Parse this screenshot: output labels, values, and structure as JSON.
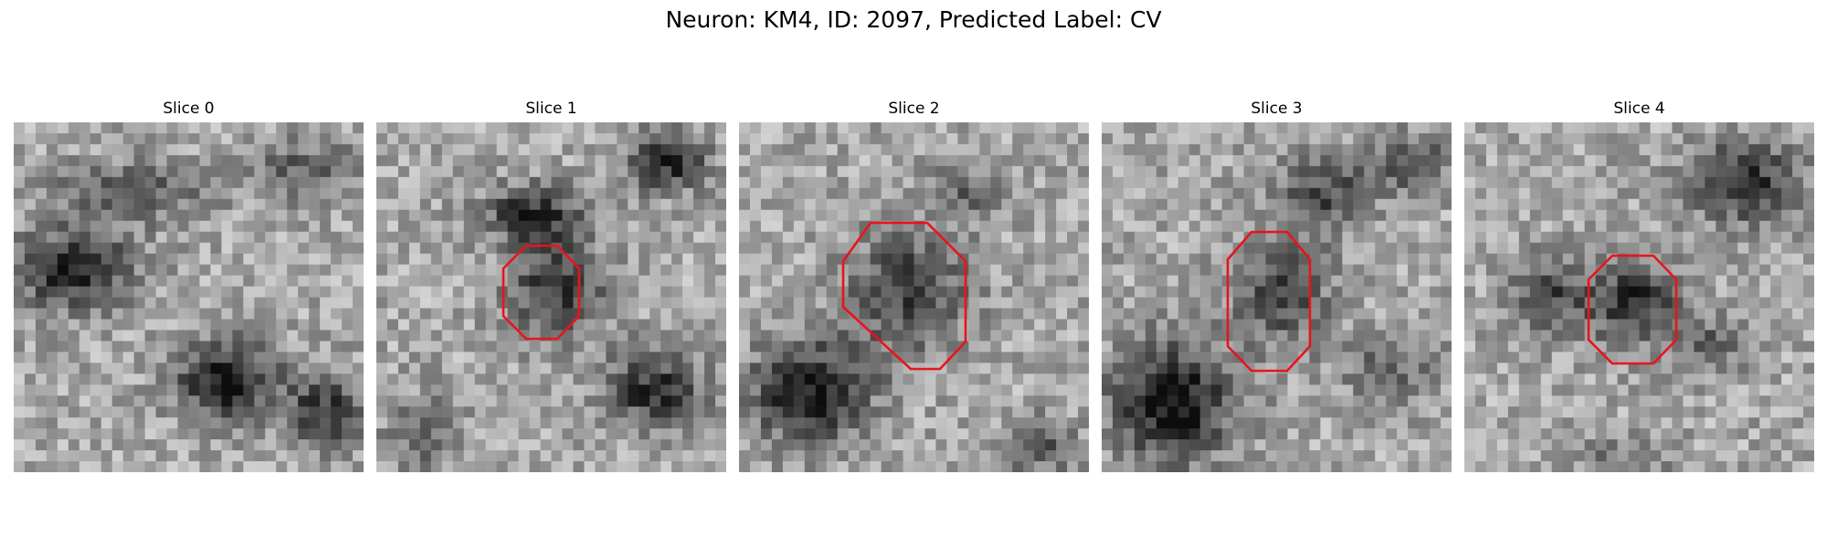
{
  "figure": {
    "title": "Neuron: KM4, ID: 2097, Predicted Label: CV"
  },
  "colors": {
    "outline": "#e8141b",
    "background": "#ffffff"
  },
  "slices": [
    {
      "label": "Slice 0",
      "has_outline": false
    },
    {
      "label": "Slice 1",
      "has_outline": true
    },
    {
      "label": "Slice 2",
      "has_outline": true
    },
    {
      "label": "Slice 3",
      "has_outline": true
    },
    {
      "label": "Slice 4",
      "has_outline": true
    }
  ]
}
